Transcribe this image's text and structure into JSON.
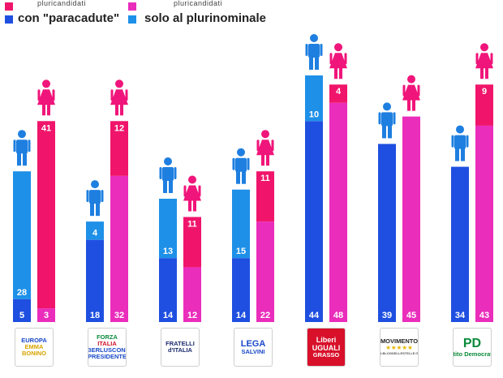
{
  "legend": {
    "note_left": "pluricandidati",
    "note_right": "pluricandidati",
    "label_left": "con \"paracadute\"",
    "label_right": "solo al plurinominale",
    "colors": {
      "blue_dark": "#1f4fe0",
      "blue_light": "#1e90e8",
      "pink_dark": "#f0156b",
      "pink_light": "#ea2dbb"
    }
  },
  "chart_data": {
    "type": "bar",
    "categories": [
      "+Europa",
      "Forza Italia",
      "Fratelli d'Italia",
      "Lega",
      "Liberi e Uguali",
      "Movimento 5 Stelle",
      "Partito Democratico"
    ],
    "series": [
      {
        "name": "",
        "group": "men",
        "part": "con paracadute",
        "values": [
          5,
          18,
          14,
          14,
          44,
          39,
          34
        ]
      },
      {
        "name": "",
        "group": "men",
        "part": "solo al plurinominale",
        "values": [
          28,
          4,
          13,
          15,
          10,
          0,
          0
        ]
      },
      {
        "name": "",
        "group": "women",
        "part": "con paracadute",
        "values": [
          3,
          32,
          12,
          22,
          48,
          45,
          43
        ]
      },
      {
        "name": "",
        "group": "women",
        "part": "solo al plurinominale",
        "values": [
          41,
          12,
          11,
          11,
          4,
          0,
          9
        ]
      }
    ],
    "ylim": [
      0,
      54
    ],
    "grid": false,
    "legend_position": "top-left"
  },
  "logos": [
    {
      "lines": [
        "EUROPA",
        "EMMA",
        "BONINO"
      ],
      "colors": [
        "#1a49c8",
        "#d8a400",
        "#d8a400"
      ],
      "icon": "europa-logo"
    },
    {
      "lines": [
        "FORZA",
        "ITALIA",
        "BERLUSCONI",
        "PRESIDENTE"
      ],
      "colors": [
        "#0a8a3a",
        "#d0102a",
        "#1a49c8",
        "#1a49c8"
      ],
      "icon": "forza-italia-logo"
    },
    {
      "lines": [
        "FRATELLI",
        "d'ITALIA"
      ],
      "colors": [
        "#1d2a6e",
        "#1d2a6e"
      ],
      "icon": "fratelli-italia-logo"
    },
    {
      "lines": [
        "LEGA",
        "SALVINI"
      ],
      "colors": [
        "#1a49c8",
        "#1a49c8"
      ],
      "icon": "lega-logo"
    },
    {
      "lines": [
        "Liberi",
        "UGUALI",
        "GRASSO"
      ],
      "colors": [
        "#ffffff",
        "#ffffff",
        "#ffffff"
      ],
      "icon": "liberi-uguali-logo"
    },
    {
      "lines": [
        "MOVIMENTO",
        "★★★★★",
        "ILBLOGDELLESTELLE.IT"
      ],
      "colors": [
        "#222222",
        "#e6b800",
        "#555555"
      ],
      "icon": "movimento-5-stelle-logo"
    },
    {
      "lines": [
        "PD",
        "Partito Democratico"
      ],
      "colors": [
        "#0a8a3a",
        "#0a8a3a"
      ],
      "icon": "partito-democratico-logo"
    }
  ]
}
